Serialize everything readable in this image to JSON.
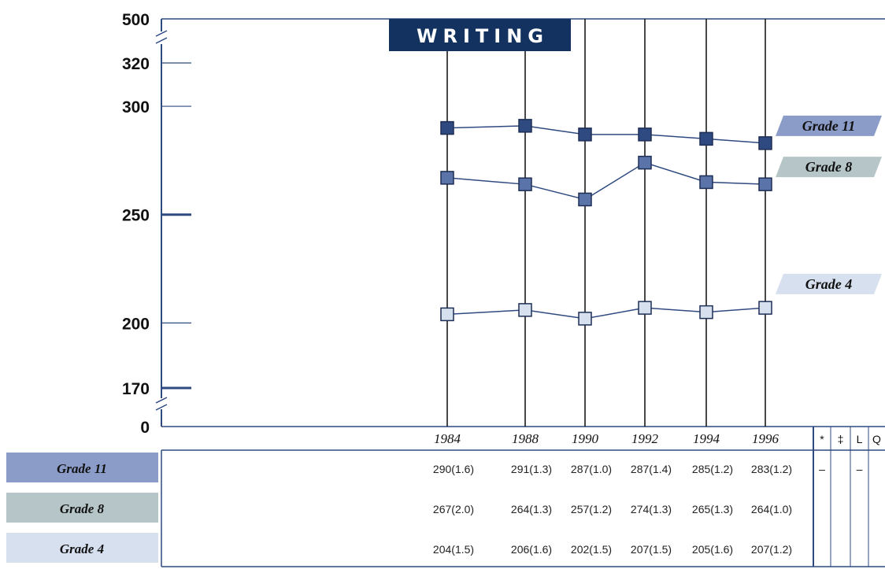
{
  "chart_data": {
    "type": "line",
    "title": "WRITING",
    "x": [
      "1984",
      "1988",
      "1990",
      "1992",
      "1994",
      "1996"
    ],
    "y_ticks": [
      "500",
      "320",
      "300",
      "250",
      "200",
      "170",
      "0"
    ],
    "ylim": [
      170,
      320
    ],
    "y_axis_broken": true,
    "grid": false,
    "legend": "labels at right end of each line",
    "series": [
      {
        "name": "Grade 11",
        "values": [
          290,
          291,
          287,
          287,
          285,
          283
        ],
        "color": "#2e4a80",
        "table": [
          "290(1.6)",
          "291(1.3)",
          "287(1.0)",
          "287(1.4)",
          "285(1.2)",
          "283(1.2)"
        ]
      },
      {
        "name": "Grade 8",
        "values": [
          267,
          264,
          257,
          274,
          265,
          264
        ],
        "color": "#5a73a8",
        "table": [
          "267(2.0)",
          "264(1.3)",
          "257(1.2)",
          "274(1.3)",
          "265(1.3)",
          "264(1.0)"
        ]
      },
      {
        "name": "Grade 4",
        "values": [
          204,
          206,
          202,
          207,
          205,
          207
        ],
        "color": "#d6e0ee",
        "table": [
          "204(1.5)",
          "206(1.6)",
          "202(1.5)",
          "207(1.5)",
          "205(1.6)",
          "207(1.2)"
        ]
      }
    ],
    "flag_columns": [
      "*",
      "‡",
      "L",
      "Q"
    ],
    "flags": {
      "Grade 11": [
        "–",
        "",
        "–",
        ""
      ],
      "Grade 8": [
        "",
        "",
        "",
        ""
      ],
      "Grade 4": [
        "",
        "",
        "",
        ""
      ]
    }
  },
  "colors": {
    "axis": "#2e4a80",
    "title_bg": "#13325f",
    "grade11_label_bg": "#8c9cc8",
    "grade8_label_bg": "#b6c6c8",
    "grade4_label_bg": "#d6e0ee"
  }
}
